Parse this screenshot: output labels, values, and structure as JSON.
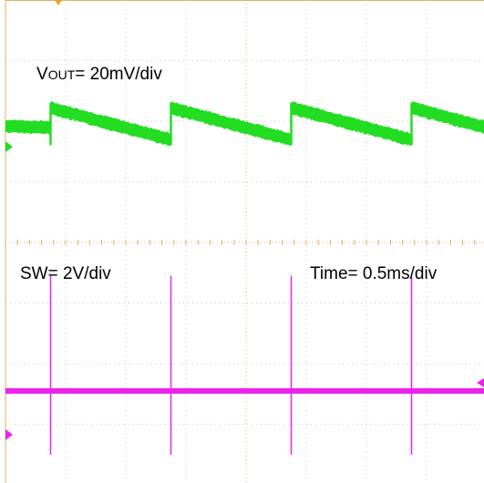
{
  "chart_data": [
    {
      "type": "line",
      "channel": "vout",
      "label_prefix": "V",
      "label_subscript": "OUT",
      "label_suffix": "= 20mV/div",
      "color": "#22dd22",
      "grid": true,
      "sawtooth": {
        "period_div": 2.0,
        "reset_times_div": [
          0.75,
          2.75,
          4.75,
          6.75
        ],
        "high_level_div": 0.95,
        "low_level_div": -0.1,
        "start_level_div": 0.35,
        "band_div": 0.18
      }
    },
    {
      "type": "line",
      "channel": "sw",
      "label": "SW= 2V/div",
      "color": "#ee22ee",
      "level_div": 0.0,
      "spike_times_div": [
        0.75,
        2.75,
        4.75,
        6.75
      ],
      "spike_up_div": 1.9,
      "spike_down_div": -1.05
    }
  ],
  "timebase_label": "Time= 0.5ms/div",
  "colors": {
    "grid_border": "#d4b36a",
    "grid_dots": "#c8c8c8",
    "vout": "#22dd22",
    "sw": "#ee22ee",
    "marker_top": "#f0a020",
    "marker_vout": "#22dd22",
    "marker_sw": "#ee22ee"
  }
}
